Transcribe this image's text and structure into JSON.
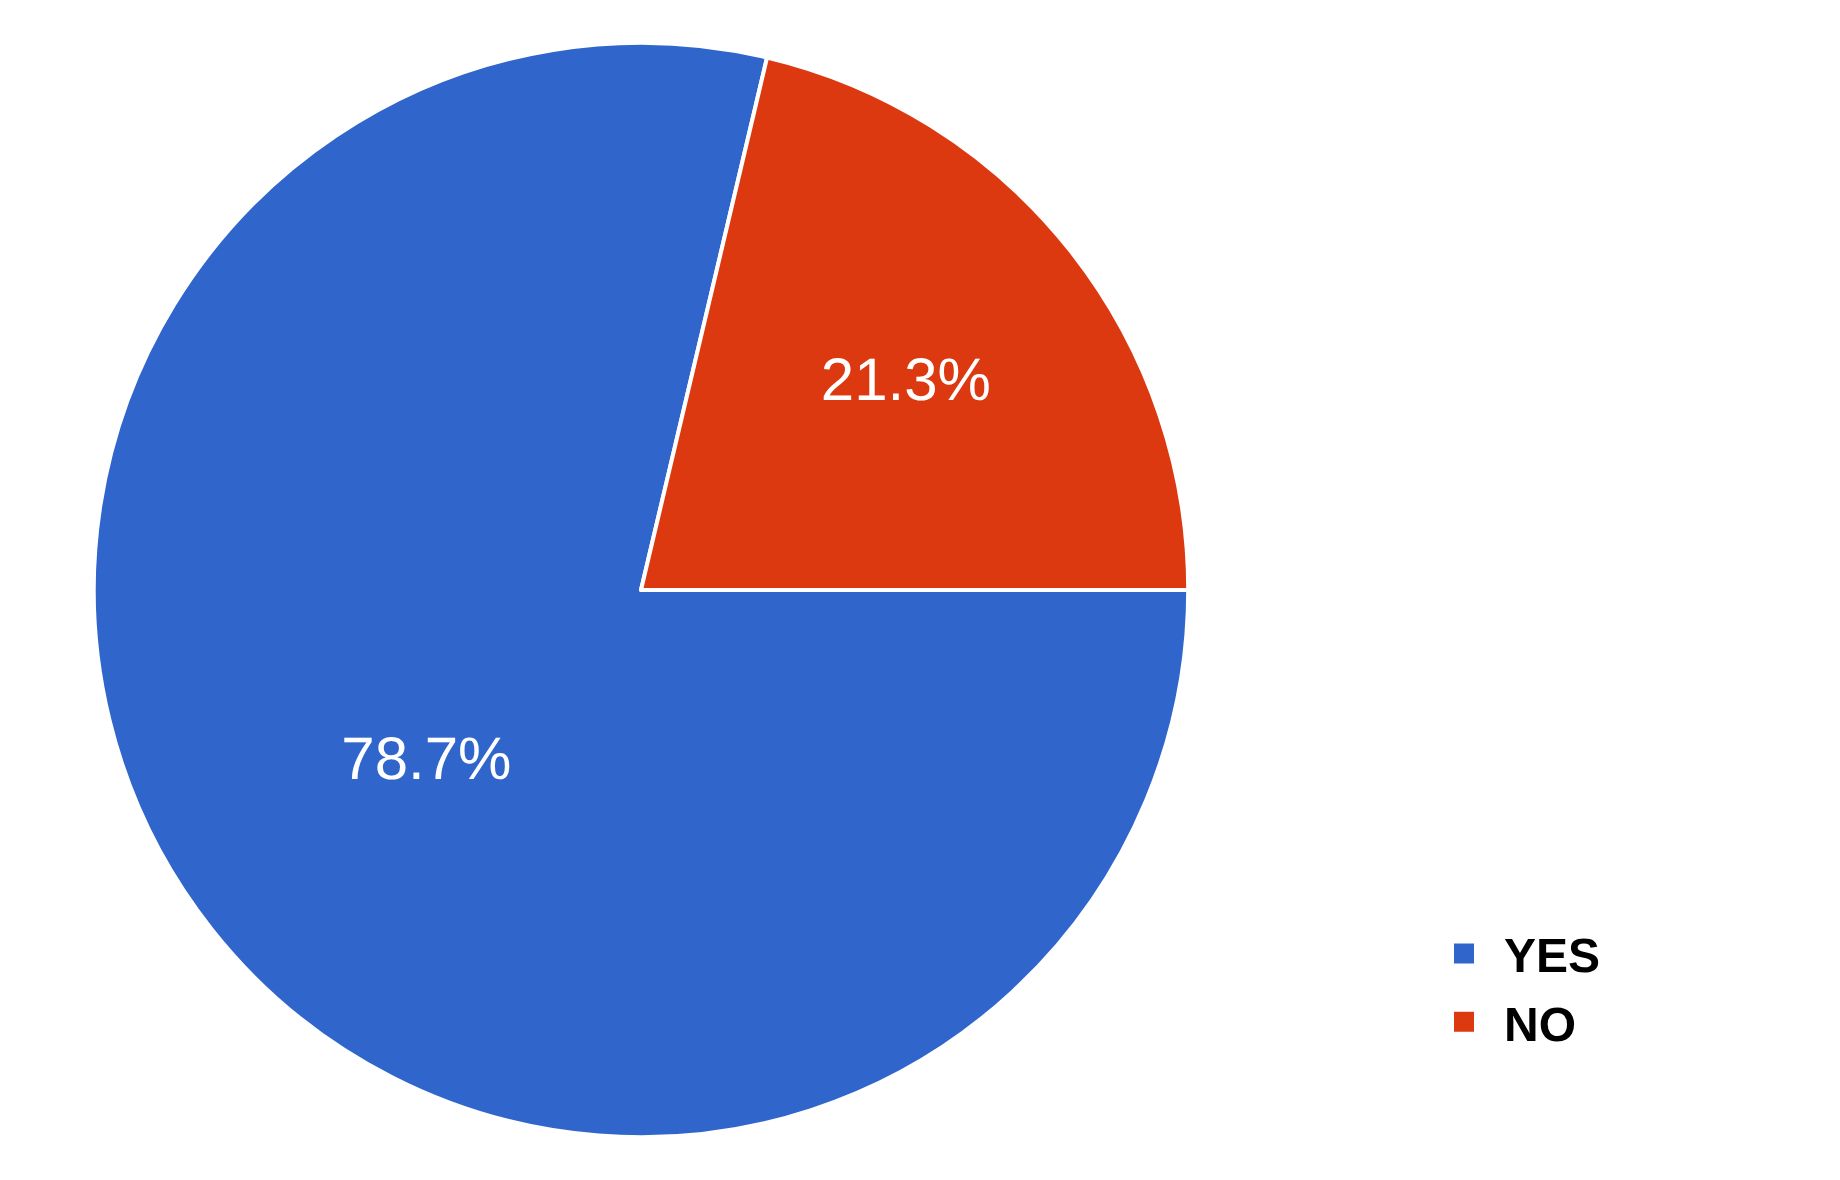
{
  "chart_data": {
    "type": "pie",
    "categories": [
      "YES",
      "NO"
    ],
    "values": [
      78.7,
      21.3
    ],
    "colors": [
      "#3066cc",
      "#dc3911"
    ],
    "value_labels": [
      "78.7%",
      "21.3%"
    ],
    "legend": "bottom right"
  }
}
